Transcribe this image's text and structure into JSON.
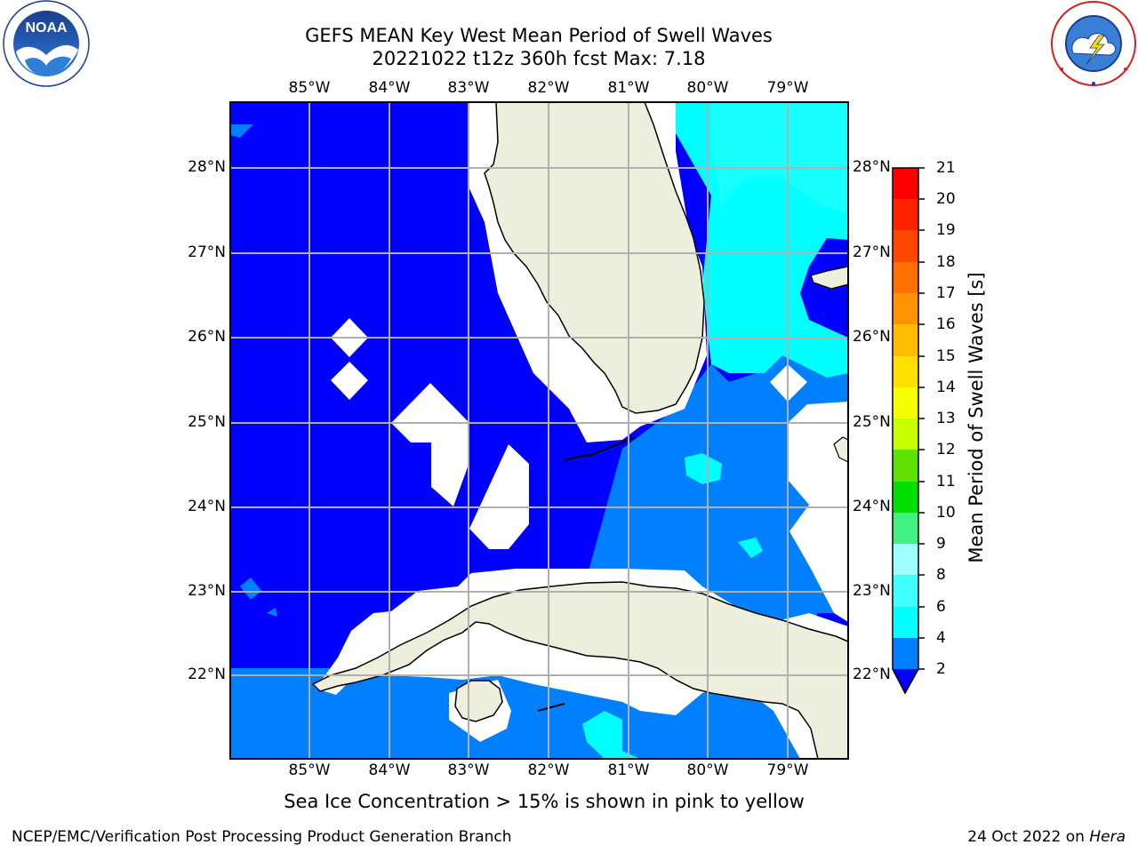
{
  "title": "GEFS MEAN Key West Mean Period of Swell Waves",
  "subtitle": "20221022 t12z 360h fcst   Max: 7.18",
  "lon_labels": [
    "85°W",
    "84°W",
    "83°W",
    "82°W",
    "81°W",
    "80°W",
    "79°W"
  ],
  "lat_labels": [
    "28°N",
    "27°N",
    "26°N",
    "25°N",
    "24°N",
    "23°N",
    "22°N"
  ],
  "colorbar": {
    "title": "Mean Period of Swell Waves [s]",
    "ticks": [
      "21",
      "20",
      "19",
      "18",
      "17",
      "16",
      "15",
      "14",
      "13",
      "12",
      "11",
      "10",
      "9",
      "8",
      "6",
      "4",
      "2"
    ]
  },
  "ice_note": "Sea Ice Concentration > 15% is shown in pink to yellow",
  "footer_left": "NCEP/EMC/Verification Post Processing Product Generation Branch",
  "footer_right_date": "24 Oct 2022 on ",
  "footer_right_host": "Hera",
  "logos": {
    "left": "NOAA",
    "right": "NATIONAL WEATHER SERVICE"
  },
  "colors": {
    "level_2_4": "#0080ff",
    "level_4_6": "#00ffff",
    "below_2": "#0000ff",
    "land": "#eeeedc",
    "grid": "#b0b0b0"
  }
}
